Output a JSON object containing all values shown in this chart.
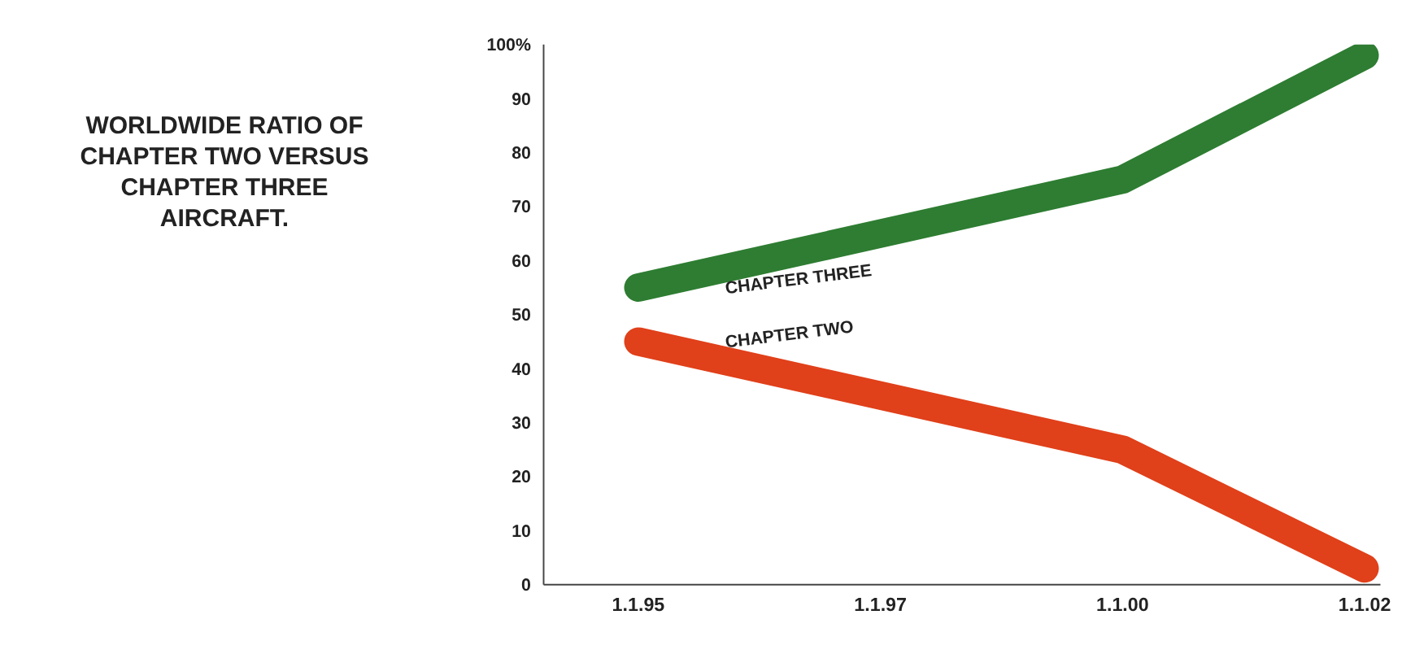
{
  "chart_data": {
    "type": "line",
    "title": "WORLDWIDE RATIO OF CHAPTER TWO VERSUS CHAPTER THREE AIRCRAFT.",
    "categories": [
      "1.1.95",
      "1.1.97",
      "1.1.00",
      "1.1.02"
    ],
    "series": [
      {
        "name": "CHAPTER THREE",
        "color": "#2e7d32",
        "values": [
          55,
          null,
          75,
          98
        ]
      },
      {
        "name": "CHAPTER TWO",
        "color": "#e0401a",
        "values": [
          45,
          null,
          25,
          3
        ]
      }
    ],
    "ylim": [
      0,
      100
    ],
    "yticks": [
      0,
      10,
      20,
      30,
      40,
      50,
      60,
      70,
      80,
      90,
      {
        "value": 100,
        "label": "100%"
      }
    ],
    "grid": false,
    "legend": false,
    "marker": "none",
    "line_style": "solid"
  }
}
